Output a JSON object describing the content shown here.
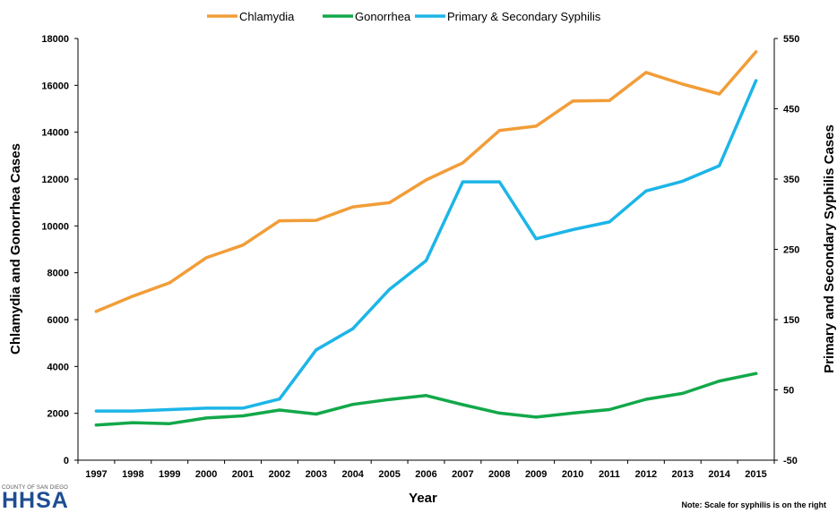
{
  "chart_data": {
    "type": "line",
    "title": "",
    "xlabel": "Year",
    "ylabel": "Chlamydia and Gonorrhea Cases",
    "y2label": "Primary and Secondary Syphilis Cases",
    "categories": [
      "1997",
      "1998",
      "1999",
      "2000",
      "2001",
      "2002",
      "2003",
      "2004",
      "2005",
      "2006",
      "2007",
      "2008",
      "2009",
      "2010",
      "2011",
      "2012",
      "2013",
      "2014",
      "2015"
    ],
    "ylim": [
      0,
      18000
    ],
    "yticks": [
      0,
      2000,
      4000,
      6000,
      8000,
      10000,
      12000,
      14000,
      16000,
      18000
    ],
    "y2lim": [
      -50,
      550
    ],
    "y2ticks": [
      -50,
      50,
      150,
      250,
      350,
      450,
      550
    ],
    "grid": false,
    "legend_position": "top",
    "series": [
      {
        "name": "Chlamydia",
        "axis": "left",
        "color": "#f29d38",
        "values": [
          6350,
          7000,
          7570,
          8640,
          9180,
          10220,
          10240,
          10810,
          10990,
          11960,
          12690,
          14070,
          14260,
          15330,
          15350,
          16550,
          16050,
          15630,
          17430
        ]
      },
      {
        "name": "Gonorrhea",
        "axis": "left",
        "color": "#13a84a",
        "values": [
          1500,
          1600,
          1560,
          1800,
          1890,
          2140,
          1970,
          2380,
          2590,
          2760,
          2370,
          2010,
          1840,
          2010,
          2160,
          2600,
          2850,
          3380,
          3700
        ]
      },
      {
        "name": "Primary & Secondary Syphilis",
        "axis": "right",
        "color": "#1cb5e8",
        "values": [
          20,
          20,
          22,
          24,
          24,
          37,
          107,
          137,
          193,
          234,
          346,
          346,
          265,
          278,
          289,
          333,
          347,
          369,
          490
        ]
      }
    ]
  },
  "note": "Note: Scale for syphilis is on the right",
  "logo": {
    "top_text": "COUNTY OF SAN DIEGO",
    "main_text": "HHSA"
  }
}
